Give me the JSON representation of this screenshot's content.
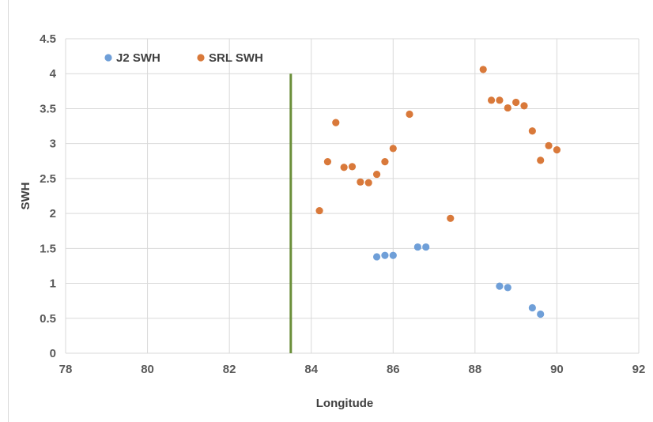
{
  "chart_data": {
    "type": "scatter",
    "title": "",
    "xlabel": "Longitude",
    "ylabel": "SWH",
    "xlim": [
      78,
      92
    ],
    "ylim": [
      0,
      4.5
    ],
    "x_ticks": [
      "78",
      "80",
      "82",
      "84",
      "86",
      "88",
      "90",
      "92"
    ],
    "y_ticks": [
      "0",
      "0.5",
      "1",
      "1.5",
      "2",
      "2.5",
      "3",
      "3.5",
      "4",
      "4.5"
    ],
    "grid": true,
    "legend_position": "top-left",
    "reference_line": {
      "x": 83.5,
      "y_from": 0,
      "y_to": 4,
      "color": "#6a8f3a"
    },
    "series": [
      {
        "name": "J2 SWH",
        "color": "#6f9fd8",
        "points": [
          [
            85.6,
            1.38
          ],
          [
            85.8,
            1.4
          ],
          [
            86.0,
            1.4
          ],
          [
            86.6,
            1.52
          ],
          [
            86.8,
            1.52
          ],
          [
            88.6,
            0.96
          ],
          [
            88.8,
            0.94
          ],
          [
            89.4,
            0.65
          ],
          [
            89.6,
            0.56
          ]
        ]
      },
      {
        "name": "SRL SWH",
        "color": "#d9793a",
        "points": [
          [
            84.2,
            2.04
          ],
          [
            84.4,
            2.74
          ],
          [
            84.6,
            3.3
          ],
          [
            84.8,
            2.66
          ],
          [
            85.0,
            2.67
          ],
          [
            85.2,
            2.45
          ],
          [
            85.4,
            2.44
          ],
          [
            85.6,
            2.56
          ],
          [
            85.8,
            2.74
          ],
          [
            86.0,
            2.93
          ],
          [
            86.4,
            3.42
          ],
          [
            87.4,
            1.93
          ],
          [
            88.2,
            4.06
          ],
          [
            88.4,
            3.62
          ],
          [
            88.6,
            3.62
          ],
          [
            88.8,
            3.51
          ],
          [
            89.0,
            3.59
          ],
          [
            89.2,
            3.54
          ],
          [
            89.4,
            3.18
          ],
          [
            89.6,
            2.76
          ],
          [
            89.8,
            2.97
          ],
          [
            90.0,
            2.91
          ]
        ]
      }
    ]
  }
}
